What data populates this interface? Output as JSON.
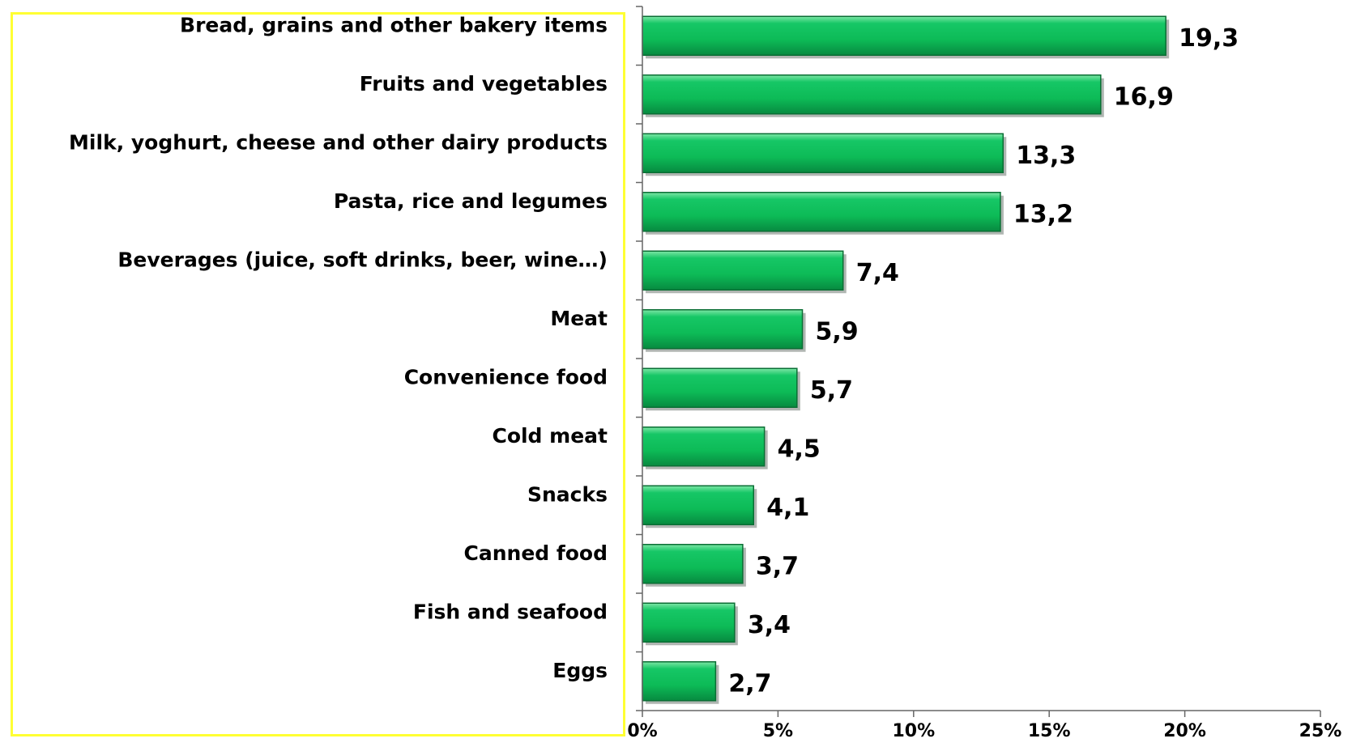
{
  "chart_data": {
    "type": "bar",
    "orientation": "horizontal",
    "categories": [
      "Bread, grains and other bakery items",
      "Fruits and vegetables",
      "Milk, yoghurt, cheese and other dairy products",
      "Pasta, rice and legumes",
      "Beverages (juice, soft drinks, beer, wine…)",
      "Meat",
      "Convenience food",
      "Cold meat",
      "Snacks",
      "Canned food",
      "Fish and seafood",
      "Eggs"
    ],
    "values": [
      19.3,
      16.9,
      13.3,
      13.2,
      7.4,
      5.9,
      5.7,
      4.5,
      4.1,
      3.7,
      3.4,
      2.7
    ],
    "value_labels": [
      "19,3",
      "16,9",
      "13,3",
      "13,2",
      "7,4",
      "5,9",
      "5,7",
      "4,5",
      "4,1",
      "3,7",
      "3,4",
      "2,7"
    ],
    "x_ticks": [
      "0%",
      "5%",
      "10%",
      "15%",
      "20%",
      "25%"
    ],
    "xlim": [
      0,
      25
    ],
    "grid": false,
    "legend": "none",
    "colors": {
      "bar": "#0dbb57",
      "bar_edge": "#0a6e34",
      "bar_shadow": "#6f7a73",
      "label_box_border": "#ffff33",
      "axis": "#666666"
    }
  }
}
